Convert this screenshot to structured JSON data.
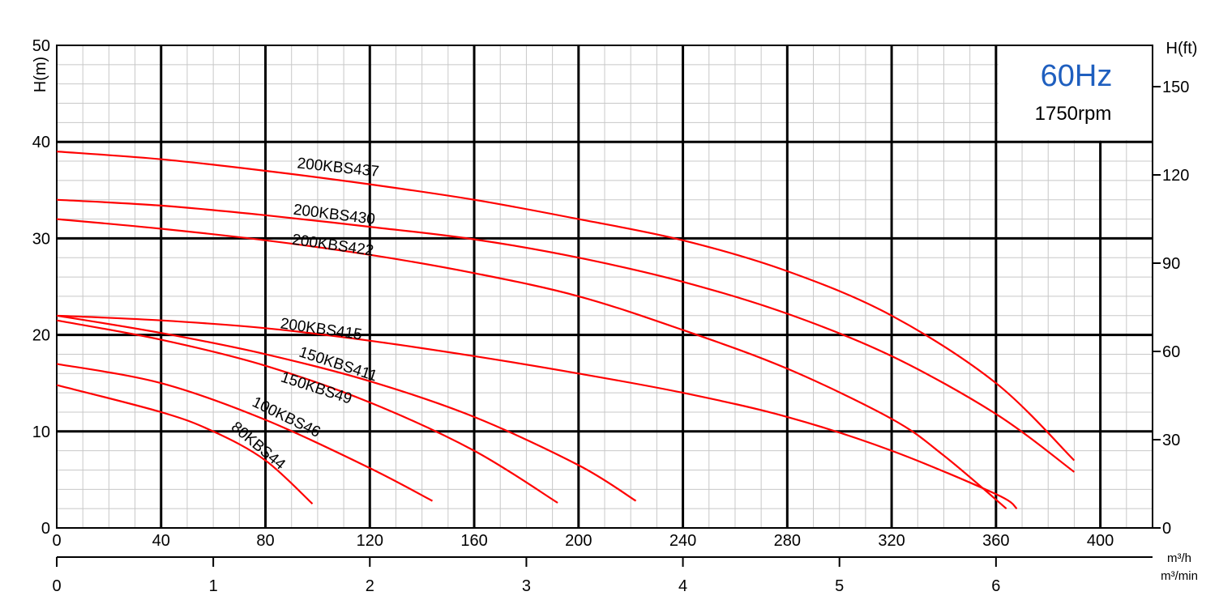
{
  "chart_data": {
    "type": "line",
    "title": "",
    "info_box": {
      "frequency": "60Hz",
      "speed": "1750rpm",
      "frequency_color": "#1f5fbf"
    },
    "y_left": {
      "label": "H(m)",
      "range": [
        0,
        50
      ],
      "ticks": [
        "0",
        "10",
        "20",
        "30",
        "40",
        "50"
      ]
    },
    "y_right": {
      "label": "H(ft)",
      "ticks": [
        {
          "value": 0,
          "label": "0"
        },
        {
          "value": 30,
          "label": "30"
        },
        {
          "value": 60,
          "label": "60"
        },
        {
          "value": 90,
          "label": "90"
        },
        {
          "value": 120,
          "label": "120"
        },
        {
          "value": 150,
          "label": "150"
        }
      ]
    },
    "x_primary": {
      "unit_label": "m³/h",
      "range": [
        0,
        420
      ],
      "ticks": [
        "0",
        "40",
        "80",
        "120",
        "160",
        "200",
        "240",
        "280",
        "320",
        "360",
        "400"
      ]
    },
    "x_secondary": {
      "unit_label": "m³/min",
      "ticks": [
        "0",
        "1",
        "2",
        "3",
        "4",
        "5",
        "6"
      ]
    },
    "grid": true,
    "line_color": "#ff0000",
    "series": [
      {
        "name": "200KBS437",
        "x": [
          0,
          40,
          80,
          120,
          160,
          200,
          240,
          280,
          320,
          360,
          390
        ],
        "y": [
          39,
          38.2,
          37,
          35.6,
          34,
          32,
          29.8,
          26.6,
          22,
          15,
          7
        ]
      },
      {
        "name": "200KBS430",
        "x": [
          0,
          40,
          80,
          120,
          160,
          200,
          240,
          280,
          320,
          360,
          390
        ],
        "y": [
          34,
          33.4,
          32.4,
          31.2,
          29.9,
          28,
          25.5,
          22.2,
          17.8,
          11.8,
          5.8
        ]
      },
      {
        "name": "200KBS422",
        "x": [
          0,
          40,
          80,
          120,
          160,
          200,
          240,
          280,
          320,
          340,
          364
        ],
        "y": [
          32,
          31,
          29.8,
          28.3,
          26.4,
          24,
          20.5,
          16.5,
          11.3,
          7.5,
          2
        ]
      },
      {
        "name": "200KBS415",
        "x": [
          0,
          40,
          80,
          120,
          160,
          200,
          240,
          280,
          320,
          360,
          368
        ],
        "y": [
          22,
          21.5,
          20.7,
          19.4,
          17.8,
          16,
          14,
          11.5,
          8,
          3.5,
          2
        ]
      },
      {
        "name": "150KBS411",
        "x": [
          0,
          40,
          80,
          120,
          160,
          200,
          222
        ],
        "y": [
          22,
          20.2,
          18,
          15.2,
          11.5,
          6.5,
          2.8
        ]
      },
      {
        "name": "150KBS49",
        "x": [
          0,
          40,
          80,
          120,
          160,
          192
        ],
        "y": [
          21.5,
          19.5,
          16.8,
          13,
          8,
          2.6
        ]
      },
      {
        "name": "100KBS46",
        "x": [
          0,
          40,
          80,
          120,
          144
        ],
        "y": [
          17,
          15,
          11.2,
          6.2,
          2.8
        ]
      },
      {
        "name": "80KBS44",
        "x": [
          0,
          40,
          60,
          80,
          98
        ],
        "y": [
          14.8,
          12,
          10,
          7,
          2.5
        ]
      }
    ],
    "curve_labels": [
      {
        "text": "200KBS437",
        "x": 92,
        "y": 37.3,
        "angle": 6
      },
      {
        "text": "200KBS430",
        "x": 90.5,
        "y": 32.5,
        "angle": 7
      },
      {
        "text": "200KBS422",
        "x": 90,
        "y": 29.4,
        "angle": 8
      },
      {
        "text": "200KBS415",
        "x": 85.5,
        "y": 20.7,
        "angle": 8
      },
      {
        "text": "150KBS411",
        "x": 92.5,
        "y": 17.8,
        "angle": 18
      },
      {
        "text": "150KBS49",
        "x": 85.5,
        "y": 15.2,
        "angle": 18
      },
      {
        "text": "100KBS46",
        "x": 74.5,
        "y": 12.7,
        "angle": 26
      },
      {
        "text": "80KBS44",
        "x": 66.5,
        "y": 10.3,
        "angle": 40
      }
    ]
  }
}
